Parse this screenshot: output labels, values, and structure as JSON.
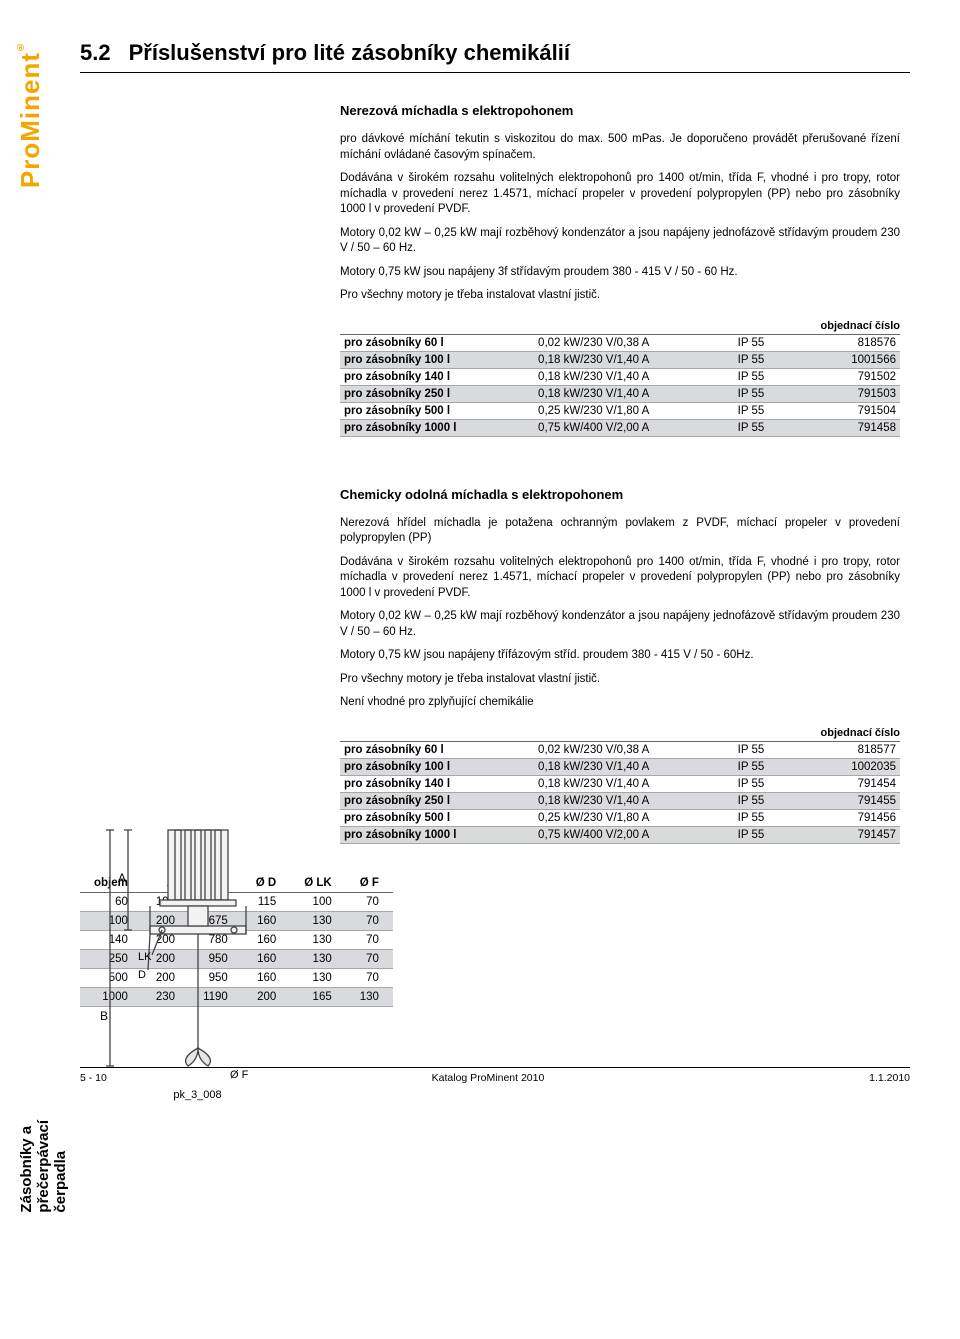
{
  "logo": {
    "text": "ProMinent",
    "reg": "®",
    "color": "#f5a500"
  },
  "side_label": "Zásobníky a přečerpávací čerpadla",
  "section": {
    "number": "5.2",
    "title": "Příslušenství pro lité zásobníky chemikálií"
  },
  "block1": {
    "heading": "Nerezová míchadla s elektropohonem",
    "p1": "pro dávkové míchání tekutin s viskozitou do max. 500 mPas. Je doporučeno provádět přerušované řízení míchání ovládané časovým spínačem.",
    "p2": "Dodávána v širokém rozsahu volitelných elektropohonů pro 1400 ot/min, třída F, vhodné i pro tropy, rotor míchadla v provedení nerez 1.4571, míchací propeler v provedení polypropylen (PP) nebo pro zásobníky 1000 l v provedení PVDF.",
    "p3": "Motory 0,02 kW – 0,25 kW mají rozběhový kondenzátor a jsou napájeny jednofázově střídavým proudem 230 V / 50 – 60 Hz.",
    "p4": "Motory 0,75 kW jsou napájeny 3f střídavým proudem 380 - 415 V / 50 - 60 Hz.",
    "p5": "Pro všechny motory je třeba instalovat vlastní jistič.",
    "order_label": "objednací číslo",
    "rows": [
      {
        "c1": "pro zásobníky 60 l",
        "c2": "0,02 kW/230 V/0,38 A",
        "c3": "IP 55",
        "c4": "818576"
      },
      {
        "c1": "pro zásobníky 100 l",
        "c2": "0,18 kW/230 V/1,40 A",
        "c3": "IP 55",
        "c4": "1001566"
      },
      {
        "c1": "pro zásobníky 140 l",
        "c2": "0,18 kW/230 V/1,40 A",
        "c3": "IP 55",
        "c4": "791502"
      },
      {
        "c1": "pro zásobníky 250 l",
        "c2": "0,18 kW/230 V/1,40 A",
        "c3": "IP 55",
        "c4": "791503"
      },
      {
        "c1": "pro zásobníky 500 l",
        "c2": "0,25 kW/230 V/1,80 A",
        "c3": "IP 55",
        "c4": "791504"
      },
      {
        "c1": "pro zásobníky 1000 l",
        "c2": "0,75 kW/400 V/2,00 A",
        "c3": "IP 55",
        "c4": "791458"
      }
    ]
  },
  "block2": {
    "heading": "Chemicky odolná míchadla s elektropohonem",
    "p1": "Nerezová hřídel míchadla je potažena ochranným povlakem z PVDF, míchací propeler v provedení polypropylen (PP)",
    "p2": "Dodávána v širokém rozsahu volitelných elektropohonů pro 1400 ot/min, třída F, vhodné i pro tropy, rotor míchadla v provedení nerez 1.4571, míchací propeler v provedení polypropylen (PP) nebo pro zásobníky 1000 l v provedení PVDF.",
    "p3": "Motory 0,02 kW – 0,25 kW mají rozběhový kondenzátor a jsou napájeny jednofázově střídavým proudem 230 V / 50 – 60 Hz.",
    "p4": "Motory 0,75 kW jsou napájeny třífázovým stříd. proudem 380 - 415 V / 50 - 60Hz.",
    "p5": "Pro všechny motory je třeba instalovat vlastní jistič.",
    "p6": "Není vhodné pro zplyňující chemikálie",
    "order_label": "objednací číslo",
    "rows": [
      {
        "c1": "pro zásobníky 60 l",
        "c2": "0,02 kW/230 V/0,38 A",
        "c3": "IP 55",
        "c4": "818577"
      },
      {
        "c1": "pro zásobníky 100 l",
        "c2": "0,18 kW/230 V/1,40 A",
        "c3": "IP 55",
        "c4": "1002035"
      },
      {
        "c1": "pro zásobníky 140 l",
        "c2": "0,18 kW/230 V/1,40 A",
        "c3": "IP 55",
        "c4": "791454"
      },
      {
        "c1": "pro zásobníky 250 l",
        "c2": "0,18 kW/230 V/1,40 A",
        "c3": "IP 55",
        "c4": "791455"
      },
      {
        "c1": "pro zásobníky 500 l",
        "c2": "0,25 kW/230 V/1,80 A",
        "c3": "IP 55",
        "c4": "791456"
      },
      {
        "c1": "pro zásobníky 1000 l",
        "c2": "0,75 kW/400 V/2,00 A",
        "c3": "IP 55",
        "c4": "791457"
      }
    ]
  },
  "figure": {
    "id": "pk_3_008",
    "labels": {
      "A": "A",
      "B": "B",
      "LK": "LK",
      "D": "D",
      "F": "Ø F"
    },
    "stroke": "#444444"
  },
  "dims_table": {
    "headers": [
      "objem",
      "A",
      "B",
      "Ø D",
      "Ø LK",
      "Ø F"
    ],
    "rows": [
      [
        60,
        195,
        490,
        115,
        100,
        70
      ],
      [
        100,
        200,
        675,
        160,
        130,
        70
      ],
      [
        140,
        200,
        780,
        160,
        130,
        70
      ],
      [
        250,
        200,
        950,
        160,
        130,
        70
      ],
      [
        500,
        200,
        950,
        160,
        130,
        70
      ],
      [
        1000,
        230,
        1190,
        200,
        165,
        130
      ]
    ]
  },
  "footer": {
    "left": "5 - 10",
    "center": "Katalog ProMinent 2010",
    "right": "1.1.2010"
  },
  "stripe_colors": {
    "odd": "#ffffff",
    "even": "#d9dadd",
    "border": "#a7a7a7"
  }
}
